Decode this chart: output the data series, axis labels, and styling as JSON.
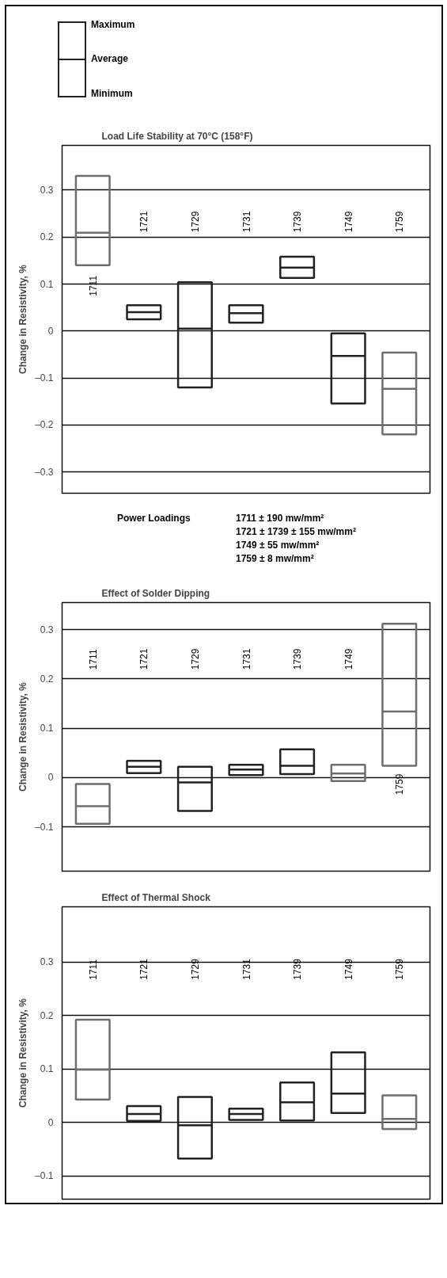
{
  "chart_data": [
    {
      "type": "other",
      "annotations": [
        "Maximum",
        "Average",
        "Minimum"
      ]
    },
    {
      "type": "box",
      "title": "Load Life Stability at 70°C (158°F)",
      "ylabel": "Change in Resistivity, %",
      "categories": [
        "1711",
        "1721",
        "1729",
        "1731",
        "1739",
        "1749",
        "1759"
      ],
      "boxes": [
        {
          "low": 0.14,
          "q1": 0.14,
          "median": 0.209,
          "q3": 0.33,
          "high": 0.33
        },
        {
          "low": 0.025,
          "q1": 0.025,
          "median": 0.04,
          "q3": 0.055,
          "high": 0.055
        },
        {
          "low": -0.12,
          "q1": -0.12,
          "median": 0.005,
          "q3": 0.104,
          "high": 0.104
        },
        {
          "low": 0.018,
          "q1": 0.018,
          "median": 0.038,
          "q3": 0.055,
          "high": 0.055
        },
        {
          "low": 0.113,
          "q1": 0.113,
          "median": 0.135,
          "q3": 0.158,
          "high": 0.158
        },
        {
          "low": -0.154,
          "q1": -0.154,
          "median": -0.053,
          "q3": -0.005,
          "high": -0.005
        },
        {
          "low": -0.22,
          "q1": -0.22,
          "median": -0.123,
          "q3": -0.046,
          "high": -0.046
        }
      ],
      "colors": [
        "#6e6e6e",
        "#222222",
        "#222222",
        "#222222",
        "#222222",
        "#222222",
        "#6e6e6e"
      ],
      "ylim": [
        -0.345,
        0.395
      ],
      "yticks": [
        {
          "value": -0.3,
          "label": "–0.3"
        },
        {
          "value": -0.2,
          "label": "–0.2"
        },
        {
          "value": -0.1,
          "label": "–0.1"
        },
        0,
        0.1,
        0.2,
        0.3
      ],
      "grid": "y",
      "tick_labels": "y",
      "annotations": [
        "Power Loadings",
        "1711 ± 190 mw/mm²",
        "1721 ± 1739 ± 155 mw/mm²",
        "1749 ± 55 mw/mm²",
        "1759 ± 8 mw/mm²"
      ]
    },
    {
      "type": "box",
      "title": "Effect of Solder Dipping",
      "ylabel": "Change in Resistivity, %",
      "categories": [
        "1711",
        "1721",
        "1729",
        "1731",
        "1739",
        "1749",
        "1759"
      ],
      "boxes": [
        {
          "low": -0.094,
          "q1": -0.094,
          "median": -0.058,
          "q3": -0.013,
          "high": -0.013
        },
        {
          "low": 0.009,
          "q1": 0.009,
          "median": 0.022,
          "q3": 0.034,
          "high": 0.034
        },
        {
          "low": -0.068,
          "q1": -0.068,
          "median": -0.01,
          "q3": 0.022,
          "high": 0.022
        },
        {
          "low": 0.005,
          "q1": 0.005,
          "median": 0.016,
          "q3": 0.026,
          "high": 0.026
        },
        {
          "low": 0.007,
          "q1": 0.007,
          "median": 0.024,
          "q3": 0.057,
          "high": 0.057
        },
        {
          "low": -0.007,
          "q1": -0.007,
          "median": 0.008,
          "q3": 0.026,
          "high": 0.026
        },
        {
          "low": 0.024,
          "q1": 0.024,
          "median": 0.134,
          "q3": 0.312,
          "high": 0.312
        }
      ],
      "colors": [
        "#6e6e6e",
        "#222222",
        "#222222",
        "#222222",
        "#222222",
        "#6e6e6e",
        "#6e6e6e"
      ],
      "ylim": [
        -0.19,
        0.355
      ],
      "yticks": [
        {
          "value": -0.1,
          "label": "–0.1"
        },
        0,
        0.1,
        0.2,
        0.3
      ],
      "grid": "y",
      "tick_labels": "y"
    },
    {
      "type": "box",
      "title": "Effect of Thermal Shock",
      "ylabel": "Change in Resistivity, %",
      "categories": [
        "1711",
        "1721",
        "1729",
        "1731",
        "1739",
        "1749",
        "1759"
      ],
      "boxes": [
        {
          "low": 0.043,
          "q1": 0.043,
          "median": 0.099,
          "q3": 0.192,
          "high": 0.192
        },
        {
          "low": 0.003,
          "q1": 0.003,
          "median": 0.016,
          "q3": 0.031,
          "high": 0.031
        },
        {
          "low": -0.067,
          "q1": -0.067,
          "median": -0.005,
          "q3": 0.048,
          "high": 0.048
        },
        {
          "low": 0.005,
          "q1": 0.005,
          "median": 0.016,
          "q3": 0.026,
          "high": 0.026
        },
        {
          "low": 0.004,
          "q1": 0.004,
          "median": 0.038,
          "q3": 0.075,
          "high": 0.075
        },
        {
          "low": 0.018,
          "q1": 0.018,
          "median": 0.054,
          "q3": 0.131,
          "high": 0.131
        },
        {
          "low": -0.012,
          "q1": -0.012,
          "median": 0.007,
          "q3": 0.051,
          "high": 0.051
        }
      ],
      "colors": [
        "#6e6e6e",
        "#222222",
        "#222222",
        "#222222",
        "#222222",
        "#222222",
        "#6e6e6e"
      ],
      "ylim": [
        -0.143,
        0.403
      ],
      "yticks": [
        {
          "value": -0.1,
          "label": "–0.1"
        },
        0,
        0.1,
        0.2,
        0.3
      ],
      "grid": "y",
      "tick_labels": "y"
    }
  ]
}
